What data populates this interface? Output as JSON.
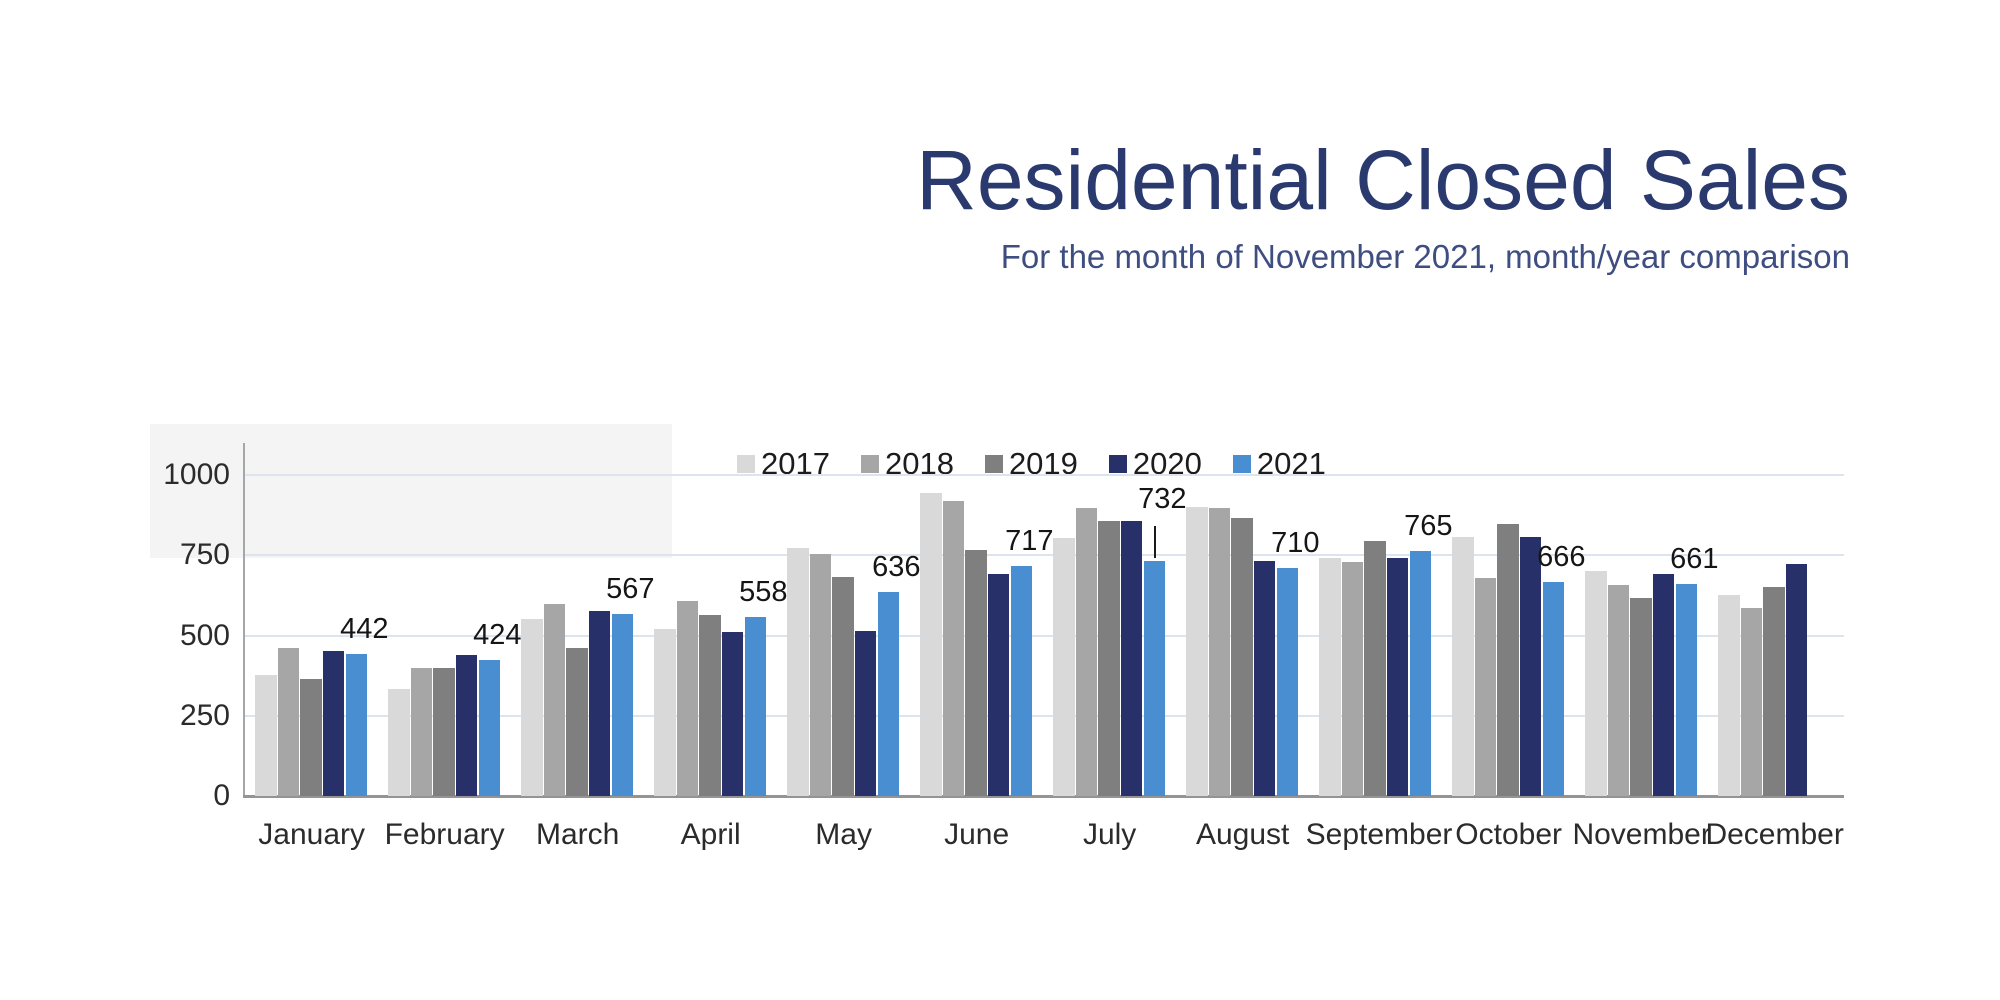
{
  "title": "Residential Closed Sales",
  "subtitle": "For the month of November 2021, month/year comparison",
  "colors": {
    "title_text": "#2b3a6e",
    "subtitle_text": "#3e4e81",
    "gridline": "#dce4ee",
    "axis_line": "#a6a6a6",
    "baseline": "#949494",
    "series_2017": "#d9d9d9",
    "series_2018": "#a6a6a6",
    "series_2019": "#7f7f7f",
    "series_2020": "#273069",
    "series_2021": "#4a8ed2"
  },
  "chart_data": {
    "type": "bar",
    "title": "Residential Closed Sales",
    "subtitle": "For the month of November 2021, month/year comparison",
    "categories": [
      "January",
      "February",
      "March",
      "April",
      "May",
      "June",
      "July",
      "August",
      "September",
      "October",
      "November",
      "December"
    ],
    "series": [
      {
        "name": "2017",
        "color": "#d9d9d9",
        "values": [
          378,
          335,
          553,
          520,
          772,
          943,
          803,
          900,
          743,
          807,
          702,
          627
        ]
      },
      {
        "name": "2018",
        "color": "#a6a6a6",
        "values": [
          461,
          400,
          598,
          607,
          753,
          920,
          899,
          898,
          730,
          678,
          657,
          585
        ]
      },
      {
        "name": "2019",
        "color": "#7f7f7f",
        "values": [
          366,
          398,
          461,
          563,
          682,
          767,
          858,
          868,
          795,
          848,
          616,
          651
        ]
      },
      {
        "name": "2020",
        "color": "#273069",
        "values": [
          452,
          440,
          576,
          511,
          513,
          691,
          858,
          734,
          742,
          807,
          691,
          723
        ]
      },
      {
        "name": "2021",
        "color": "#4a8ed2",
        "values": [
          442,
          424,
          567,
          558,
          636,
          717,
          732,
          710,
          765,
          666,
          661,
          null
        ]
      }
    ],
    "data_label_series": "2021",
    "data_labels": [
      "442",
      "424",
      "567",
      "558",
      "636",
      "717",
      "732",
      "710",
      "765",
      "666",
      "661",
      ""
    ],
    "callout_month_index": 6,
    "ylim": [
      0,
      1000
    ],
    "yticks": [
      0,
      250,
      500,
      750,
      1000
    ],
    "grid": true,
    "legend_position": "top-center",
    "legend_entries": [
      "2017",
      "2018",
      "2019",
      "2020",
      "2021"
    ]
  }
}
